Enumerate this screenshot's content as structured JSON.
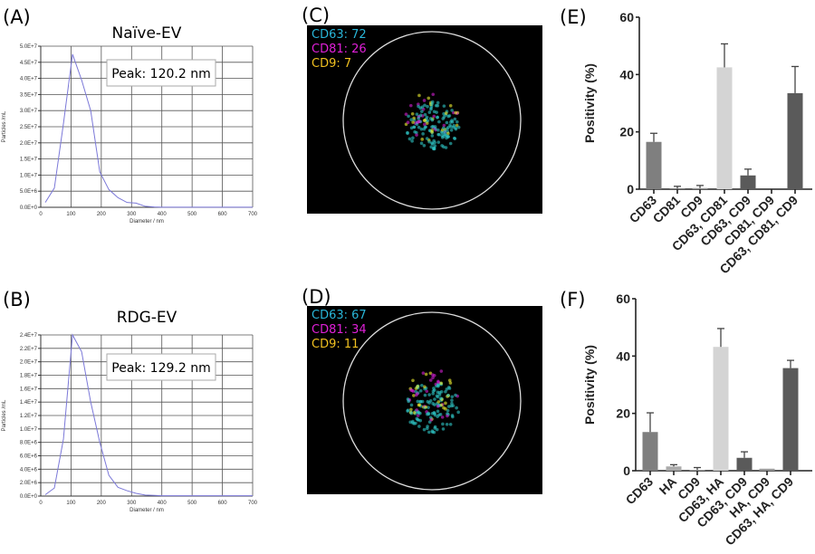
{
  "panels": {
    "a": "(A)",
    "b": "(B)",
    "c": "(C)",
    "d": "(D)",
    "e": "(E)",
    "f": "(F)"
  },
  "chart_data": [
    {
      "id": "A",
      "type": "line",
      "title": "Naïve-EV",
      "xlabel": "Diameter / nm",
      "ylabel": "Particles /mL",
      "annotation": "Peak: 120.2 nm",
      "xlim": [
        0,
        700
      ],
      "ylim": [
        0,
        50000000
      ],
      "xticks": [
        "0",
        "100",
        "200",
        "300",
        "400",
        "500",
        "600",
        "700"
      ],
      "yticks": [
        "0.0E+0",
        "5.0E+6",
        "1.0E+7",
        "1.5E+7",
        "2.0E+7",
        "2.5E+7",
        "3.0E+7",
        "3.5E+7",
        "4.0E+7",
        "4.5E+7",
        "5.0E+7"
      ],
      "grid": true,
      "color": "#7b78d8",
      "x": [
        15,
        45,
        75,
        105,
        135,
        165,
        195,
        225,
        255,
        285,
        315,
        345,
        375,
        400,
        500,
        600,
        700
      ],
      "y": [
        1500000,
        6000000,
        26000000,
        47500000,
        39500000,
        30000000,
        11000000,
        5500000,
        3000000,
        1500000,
        1300000,
        300000,
        100000,
        50000,
        50000,
        50000,
        50000
      ]
    },
    {
      "id": "B",
      "type": "line",
      "title": "RDG-EV",
      "xlabel": "Diameter / nm",
      "ylabel": "Particles /mL",
      "annotation": "Peak: 129.2 nm",
      "xlim": [
        0,
        700
      ],
      "ylim": [
        0,
        24000000
      ],
      "xticks": [
        "0",
        "100",
        "200",
        "300",
        "400",
        "500",
        "600",
        "700"
      ],
      "yticks": [
        "0.0E+0",
        "2.0E+6",
        "4.0E+6",
        "6.0E+6",
        "8.0E+6",
        "1.0E+7",
        "1.2E+7",
        "1.4E+7",
        "1.6E+7",
        "1.8E+7",
        "2.0E+7",
        "2.2E+7",
        "2.4E+7"
      ],
      "grid": true,
      "color": "#7b78d8",
      "x": [
        15,
        45,
        75,
        105,
        135,
        165,
        195,
        225,
        255,
        285,
        315,
        345,
        375,
        400,
        500,
        600,
        700
      ],
      "y": [
        200000,
        1200000,
        8500000,
        24000000,
        21500000,
        14000000,
        8000000,
        3100000,
        1300000,
        800000,
        400000,
        150000,
        100000,
        50000,
        50000,
        50000,
        50000
      ]
    },
    {
      "id": "E",
      "type": "bar",
      "ylabel": "Positivity (%)",
      "ylim": [
        0,
        60
      ],
      "yticks": [
        "0",
        "20",
        "40",
        "60"
      ],
      "categories": [
        "CD63",
        "CD81",
        "CD9",
        "CD63, CD81",
        "CD63, CD9",
        "CD81, CD9",
        "CD63, CD81, CD9"
      ],
      "values": [
        16.5,
        0.3,
        0.4,
        42.5,
        4.8,
        0,
        33.5
      ],
      "errors": [
        3,
        0.7,
        0.9,
        8.2,
        2.2,
        0,
        9.3
      ],
      "colors": [
        "#7f7f7f",
        "#7f7f7f",
        "#9a9a9a",
        "#d4d4d4",
        "#5a5a5a",
        "#5a5a5a",
        "#5a5a5a"
      ]
    },
    {
      "id": "F",
      "type": "bar",
      "ylabel": "Positivity (%)",
      "ylim": [
        0,
        60
      ],
      "yticks": [
        "0",
        "20",
        "40",
        "60"
      ],
      "categories": [
        "CD63",
        "HA",
        "CD9",
        "CD63, HA",
        "CD63, CD9",
        "HA, CD9",
        "CD63, HA, CD9"
      ],
      "values": [
        13.5,
        1.5,
        0.3,
        43.2,
        4.5,
        0.7,
        35.8
      ],
      "errors": [
        6.7,
        0.6,
        0.8,
        6.4,
        2.1,
        0,
        2.7
      ],
      "colors": [
        "#7f7f7f",
        "#aaaaaa",
        "#9a9a9a",
        "#d4d4d4",
        "#5a5a5a",
        "#9a9a9a",
        "#5a5a5a"
      ]
    }
  ],
  "images": {
    "c": {
      "counts": [
        {
          "label": "CD63: 72",
          "color": "#29b6d8"
        },
        {
          "label": "CD81: 26",
          "color": "#e020d8"
        },
        {
          "label": "CD9: 7",
          "color": "#f0c020"
        }
      ]
    },
    "d": {
      "counts": [
        {
          "label": "CD63: 67",
          "color": "#29b6d8"
        },
        {
          "label": "CD81: 34",
          "color": "#e020d8"
        },
        {
          "label": "CD9: 11",
          "color": "#f0c020"
        }
      ]
    }
  }
}
